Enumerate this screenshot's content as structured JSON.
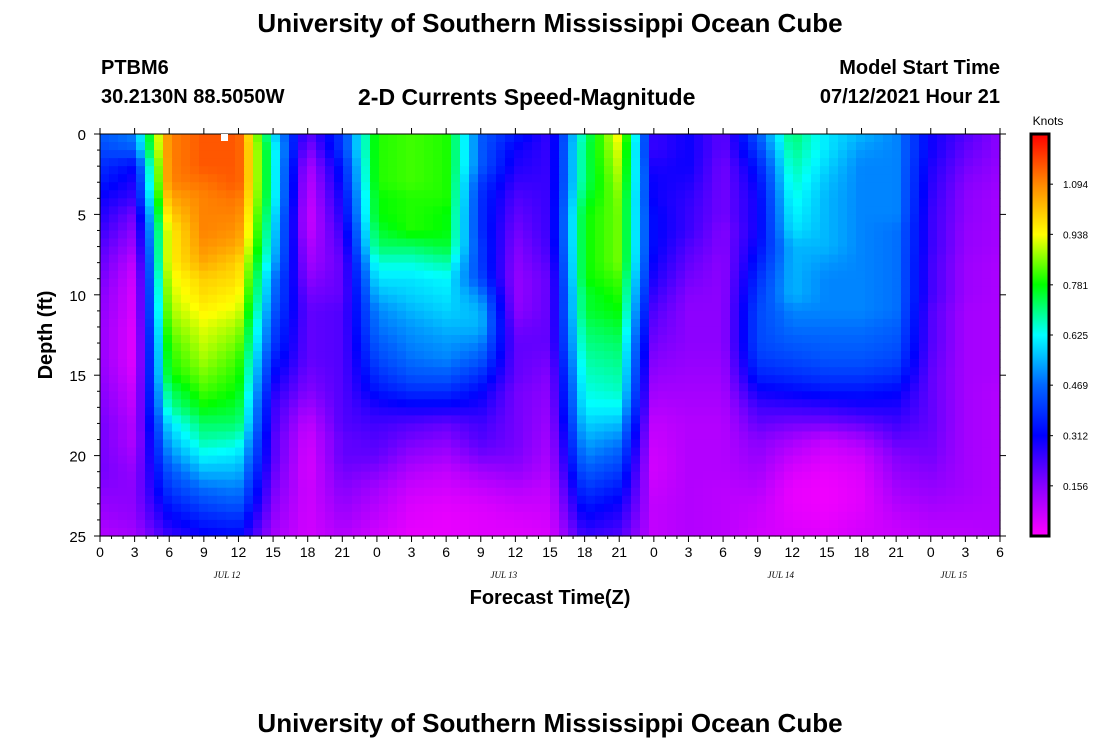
{
  "header": {
    "title": "University of Southern Mississippi Ocean Cube",
    "station": "PTBM6",
    "coordinates": "30.2130N  88.5050W",
    "subtitle": "2-D Currents Speed-Magnitude",
    "model_start_label": "Model Start Time",
    "model_start_value": "07/12/2021 Hour 21"
  },
  "footer": {
    "title": "University of Southern Mississippi Ocean Cube"
  },
  "chart_data": {
    "type": "heatmap",
    "title": "2-D Currents Speed-Magnitude",
    "xlabel": "Forecast Time(Z)",
    "ylabel": "Depth (ft)",
    "x_range_hours": [
      0,
      78
    ],
    "y_range": [
      0,
      25
    ],
    "y_inverted": true,
    "x_ticks": [
      0,
      3,
      6,
      9,
      12,
      15,
      18,
      21,
      24,
      27,
      30,
      33,
      36,
      39,
      42,
      45,
      48,
      51,
      54,
      57,
      60,
      63,
      66,
      69,
      72,
      75,
      78
    ],
    "x_tick_labels": [
      "0",
      "3",
      "6",
      "9",
      "12",
      "15",
      "18",
      "21",
      "0",
      "3",
      "6",
      "9",
      "12",
      "15",
      "18",
      "21",
      "0",
      "3",
      "6",
      "9",
      "12",
      "15",
      "18",
      "21",
      "0",
      "3",
      "6"
    ],
    "y_ticks": [
      0,
      5,
      10,
      15,
      20,
      25
    ],
    "y_tick_labels": [
      "0",
      "5",
      "10",
      "15",
      "20",
      "25"
    ],
    "date_labels": [
      {
        "hour": 11,
        "text": "JUL 12"
      },
      {
        "hour": 35,
        "text": "JUL 13"
      },
      {
        "hour": 59,
        "text": "JUL 14"
      },
      {
        "hour": 74,
        "text": "JUL 15"
      }
    ],
    "colorbar": {
      "unit_label": "Knots",
      "range": [
        0,
        1.25
      ],
      "tick_values": [
        0.156,
        0.312,
        0.469,
        0.625,
        0.781,
        0.938,
        1.094
      ],
      "tick_labels": [
        "0.156",
        "0.312",
        "0.469",
        "0.625",
        "0.781",
        "0.938",
        "1.094"
      ],
      "colors": [
        "#ff00ff",
        "#8800ff",
        "#0000ff",
        "#0066ff",
        "#00ffff",
        "#00ff00",
        "#ffff00",
        "#ff8800",
        "#ff0000"
      ]
    },
    "depth_levels_ft": [
      0,
      1,
      2,
      3,
      4,
      5,
      6,
      7,
      8,
      9,
      10,
      11,
      12,
      13,
      14,
      15,
      16,
      17,
      18,
      19,
      20,
      21,
      22,
      23,
      24,
      25
    ],
    "time_hours": [
      0,
      3,
      6,
      9,
      12,
      15,
      18,
      21,
      24,
      27,
      30,
      33,
      36,
      39,
      42,
      45,
      48,
      51,
      54,
      57,
      60,
      63,
      66,
      69,
      72,
      75,
      78
    ],
    "speed_knots": [
      [
        0.45,
        0.5,
        1.1,
        1.15,
        1.15,
        0.6,
        0.2,
        0.4,
        0.8,
        0.82,
        0.8,
        0.45,
        0.35,
        0.25,
        0.7,
        0.95,
        0.25,
        0.3,
        0.2,
        0.45,
        0.72,
        0.6,
        0.55,
        0.5,
        0.3,
        0.22,
        0.15
      ],
      [
        0.42,
        0.45,
        1.1,
        1.15,
        1.15,
        0.65,
        0.15,
        0.4,
        0.8,
        0.82,
        0.8,
        0.45,
        0.3,
        0.25,
        0.72,
        0.92,
        0.25,
        0.3,
        0.2,
        0.4,
        0.7,
        0.6,
        0.52,
        0.5,
        0.3,
        0.2,
        0.15
      ],
      [
        0.38,
        0.32,
        1.1,
        1.15,
        1.15,
        0.65,
        0.1,
        0.35,
        0.8,
        0.82,
        0.8,
        0.45,
        0.28,
        0.25,
        0.72,
        0.9,
        0.28,
        0.3,
        0.18,
        0.35,
        0.68,
        0.58,
        0.5,
        0.5,
        0.28,
        0.18,
        0.14
      ],
      [
        0.35,
        0.28,
        1.1,
        1.12,
        1.15,
        0.65,
        0.08,
        0.33,
        0.8,
        0.82,
        0.8,
        0.4,
        0.25,
        0.25,
        0.72,
        0.88,
        0.3,
        0.28,
        0.18,
        0.32,
        0.66,
        0.56,
        0.5,
        0.5,
        0.27,
        0.16,
        0.13
      ],
      [
        0.3,
        0.25,
        1.05,
        1.1,
        1.12,
        0.65,
        0.07,
        0.3,
        0.78,
        0.8,
        0.8,
        0.38,
        0.22,
        0.25,
        0.75,
        0.86,
        0.3,
        0.26,
        0.18,
        0.3,
        0.64,
        0.55,
        0.5,
        0.5,
        0.26,
        0.15,
        0.12
      ],
      [
        0.28,
        0.18,
        1.0,
        1.1,
        1.1,
        0.62,
        0.06,
        0.28,
        0.78,
        0.8,
        0.78,
        0.38,
        0.2,
        0.25,
        0.78,
        0.85,
        0.32,
        0.25,
        0.18,
        0.3,
        0.62,
        0.55,
        0.5,
        0.5,
        0.25,
        0.15,
        0.12
      ],
      [
        0.25,
        0.15,
        0.95,
        1.1,
        1.08,
        0.6,
        0.07,
        0.25,
        0.75,
        0.8,
        0.78,
        0.38,
        0.18,
        0.25,
        0.78,
        0.85,
        0.32,
        0.25,
        0.16,
        0.3,
        0.6,
        0.55,
        0.5,
        0.48,
        0.25,
        0.14,
        0.12
      ],
      [
        0.22,
        0.12,
        0.95,
        1.08,
        1.05,
        0.58,
        0.1,
        0.22,
        0.72,
        0.72,
        0.75,
        0.4,
        0.16,
        0.24,
        0.78,
        0.85,
        0.32,
        0.22,
        0.16,
        0.32,
        0.55,
        0.55,
        0.5,
        0.48,
        0.25,
        0.14,
        0.12
      ],
      [
        0.2,
        0.08,
        0.95,
        1.05,
        1.0,
        0.55,
        0.12,
        0.2,
        0.65,
        0.65,
        0.68,
        0.4,
        0.15,
        0.22,
        0.78,
        0.85,
        0.3,
        0.2,
        0.15,
        0.35,
        0.55,
        0.52,
        0.5,
        0.48,
        0.24,
        0.13,
        0.11
      ],
      [
        0.18,
        0.06,
        0.92,
        1.0,
        0.98,
        0.5,
        0.15,
        0.2,
        0.6,
        0.6,
        0.62,
        0.42,
        0.14,
        0.2,
        0.78,
        0.82,
        0.28,
        0.18,
        0.15,
        0.38,
        0.55,
        0.5,
        0.5,
        0.48,
        0.24,
        0.13,
        0.11
      ],
      [
        0.16,
        0.05,
        0.9,
        0.98,
        0.95,
        0.48,
        0.18,
        0.2,
        0.55,
        0.58,
        0.6,
        0.5,
        0.14,
        0.2,
        0.75,
        0.8,
        0.25,
        0.16,
        0.15,
        0.4,
        0.55,
        0.5,
        0.5,
        0.48,
        0.24,
        0.13,
        0.11
      ],
      [
        0.15,
        0.05,
        0.88,
        0.95,
        0.92,
        0.45,
        0.2,
        0.22,
        0.5,
        0.55,
        0.58,
        0.55,
        0.15,
        0.2,
        0.75,
        0.78,
        0.22,
        0.15,
        0.15,
        0.42,
        0.5,
        0.5,
        0.5,
        0.48,
        0.22,
        0.12,
        0.11
      ],
      [
        0.14,
        0.04,
        0.85,
        0.92,
        0.88,
        0.42,
        0.2,
        0.22,
        0.48,
        0.52,
        0.55,
        0.55,
        0.18,
        0.2,
        0.72,
        0.75,
        0.2,
        0.15,
        0.15,
        0.42,
        0.48,
        0.48,
        0.48,
        0.46,
        0.22,
        0.12,
        0.11
      ],
      [
        0.14,
        0.04,
        0.82,
        0.9,
        0.85,
        0.4,
        0.2,
        0.22,
        0.45,
        0.5,
        0.52,
        0.5,
        0.2,
        0.2,
        0.7,
        0.72,
        0.18,
        0.15,
        0.15,
        0.42,
        0.45,
        0.46,
        0.46,
        0.44,
        0.22,
        0.12,
        0.11
      ],
      [
        0.14,
        0.04,
        0.8,
        0.88,
        0.82,
        0.36,
        0.2,
        0.22,
        0.42,
        0.48,
        0.5,
        0.45,
        0.2,
        0.18,
        0.68,
        0.7,
        0.16,
        0.14,
        0.14,
        0.4,
        0.42,
        0.44,
        0.44,
        0.42,
        0.21,
        0.12,
        0.11
      ],
      [
        0.15,
        0.05,
        0.78,
        0.85,
        0.8,
        0.32,
        0.18,
        0.22,
        0.38,
        0.44,
        0.45,
        0.38,
        0.2,
        0.16,
        0.66,
        0.68,
        0.14,
        0.13,
        0.13,
        0.36,
        0.38,
        0.4,
        0.4,
        0.38,
        0.2,
        0.12,
        0.11
      ],
      [
        0.16,
        0.07,
        0.72,
        0.82,
        0.78,
        0.28,
        0.16,
        0.22,
        0.34,
        0.38,
        0.38,
        0.32,
        0.18,
        0.15,
        0.64,
        0.66,
        0.12,
        0.12,
        0.12,
        0.3,
        0.32,
        0.34,
        0.34,
        0.32,
        0.2,
        0.12,
        0.1
      ],
      [
        0.17,
        0.08,
        0.68,
        0.78,
        0.75,
        0.25,
        0.12,
        0.22,
        0.28,
        0.3,
        0.3,
        0.28,
        0.18,
        0.14,
        0.62,
        0.62,
        0.1,
        0.11,
        0.11,
        0.24,
        0.25,
        0.26,
        0.28,
        0.28,
        0.2,
        0.12,
        0.1
      ],
      [
        0.18,
        0.1,
        0.6,
        0.72,
        0.72,
        0.24,
        0.08,
        0.22,
        0.24,
        0.22,
        0.2,
        0.24,
        0.18,
        0.13,
        0.58,
        0.56,
        0.08,
        0.1,
        0.1,
        0.2,
        0.18,
        0.18,
        0.2,
        0.24,
        0.2,
        0.12,
        0.1
      ],
      [
        0.18,
        0.1,
        0.55,
        0.68,
        0.66,
        0.22,
        0.06,
        0.2,
        0.22,
        0.18,
        0.16,
        0.22,
        0.18,
        0.12,
        0.54,
        0.5,
        0.07,
        0.1,
        0.1,
        0.16,
        0.12,
        0.08,
        0.12,
        0.2,
        0.19,
        0.12,
        0.1
      ],
      [
        0.18,
        0.12,
        0.5,
        0.62,
        0.6,
        0.22,
        0.05,
        0.2,
        0.2,
        0.14,
        0.12,
        0.18,
        0.17,
        0.11,
        0.5,
        0.45,
        0.06,
        0.1,
        0.1,
        0.14,
        0.08,
        0.05,
        0.07,
        0.16,
        0.18,
        0.12,
        0.1
      ],
      [
        0.18,
        0.14,
        0.44,
        0.55,
        0.55,
        0.2,
        0.05,
        0.18,
        0.16,
        0.1,
        0.08,
        0.12,
        0.14,
        0.1,
        0.45,
        0.4,
        0.06,
        0.1,
        0.1,
        0.12,
        0.05,
        0.03,
        0.05,
        0.14,
        0.16,
        0.12,
        0.1
      ],
      [
        0.16,
        0.15,
        0.4,
        0.48,
        0.5,
        0.18,
        0.06,
        0.16,
        0.12,
        0.07,
        0.06,
        0.08,
        0.1,
        0.08,
        0.4,
        0.35,
        0.07,
        0.1,
        0.09,
        0.1,
        0.03,
        0.02,
        0.04,
        0.12,
        0.14,
        0.12,
        0.1
      ],
      [
        0.14,
        0.15,
        0.35,
        0.42,
        0.45,
        0.16,
        0.06,
        0.14,
        0.1,
        0.05,
        0.04,
        0.05,
        0.07,
        0.07,
        0.35,
        0.3,
        0.08,
        0.1,
        0.09,
        0.08,
        0.03,
        0.02,
        0.04,
        0.1,
        0.12,
        0.11,
        0.1
      ],
      [
        0.12,
        0.14,
        0.3,
        0.36,
        0.38,
        0.14,
        0.06,
        0.12,
        0.08,
        0.04,
        0.03,
        0.04,
        0.05,
        0.06,
        0.3,
        0.26,
        0.08,
        0.1,
        0.09,
        0.07,
        0.04,
        0.03,
        0.05,
        0.08,
        0.1,
        0.1,
        0.1
      ],
      [
        0.1,
        0.12,
        0.25,
        0.3,
        0.32,
        0.12,
        0.06,
        0.1,
        0.06,
        0.03,
        0.03,
        0.04,
        0.04,
        0.05,
        0.25,
        0.22,
        0.08,
        0.1,
        0.09,
        0.06,
        0.05,
        0.04,
        0.06,
        0.07,
        0.09,
        0.09,
        0.1
      ]
    ]
  }
}
